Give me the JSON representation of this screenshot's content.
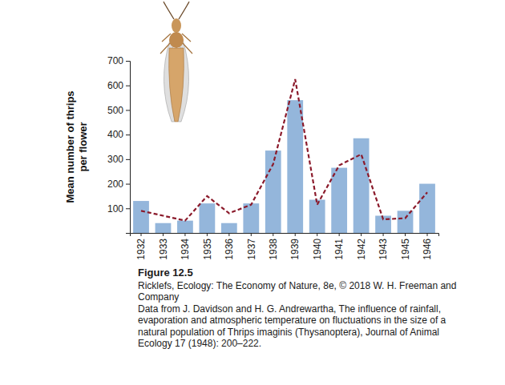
{
  "chart_data": {
    "type": "bar",
    "title": "Figure 12.5",
    "annotations": [
      "Ricklefs, Ecology: The Economy of Nature, 8e, © 2018 W. H. Freeman and Company",
      "Data from J. Davidson and H. G. Andrewartha, The influence of rainfall, evaporation and atmospheric temperature on fluctuations in the size of a natural population of Thrips imaginis (Thysanoptera), Journal of Animal Ecology 17 (1948): 200–222."
    ],
    "ylabel": "Mean number of thrips per flower",
    "categories": [
      "1932",
      "1933",
      "1934",
      "1935",
      "1936",
      "1937",
      "1938",
      "1939",
      "1940",
      "1941",
      "1942",
      "1943",
      "1945",
      "1946"
    ],
    "series": [
      {
        "type": "bar",
        "color": "#94b6db",
        "values": [
          130,
          40,
          50,
          120,
          40,
          120,
          335,
          540,
          135,
          265,
          385,
          70,
          90,
          200
        ]
      },
      {
        "type": "line",
        "color": "#8b1a2b",
        "line_style": "dashed",
        "values": [
          90,
          70,
          50,
          150,
          80,
          115,
          280,
          625,
          115,
          275,
          320,
          55,
          60,
          165
        ]
      }
    ],
    "ylim": [
      0,
      700
    ],
    "yticks": [
      100,
      200,
      300,
      400,
      500,
      600,
      700
    ],
    "grid": false
  }
}
